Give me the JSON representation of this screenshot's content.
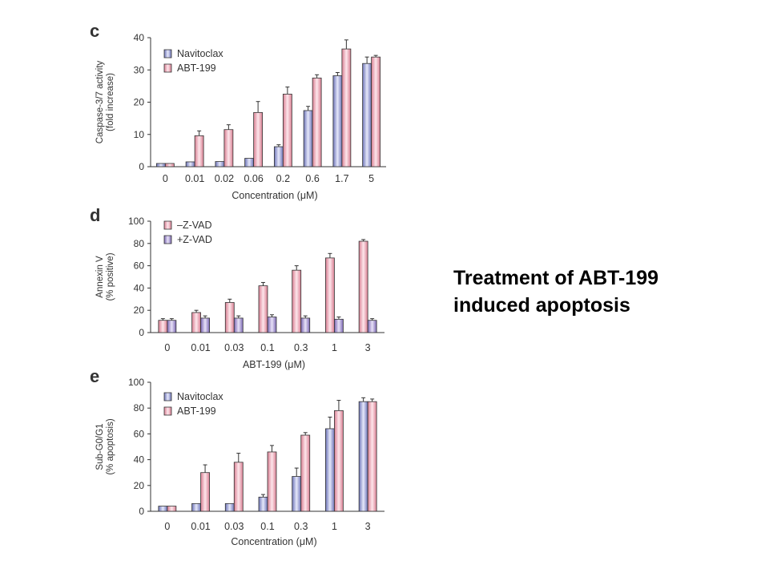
{
  "caption": {
    "line1": "Treatment of ABT-199",
    "line2": "induced apoptosis"
  },
  "colors": {
    "navy_fill": "#aeb3df",
    "pink_fill": "#f2b8c3",
    "stroke": "#333333"
  },
  "chart_data": [
    {
      "panel": "c",
      "type": "bar",
      "ylabel": [
        "Caspase-3/7 activity",
        "(fold increase)"
      ],
      "xlabel": "Concentration (μM)",
      "ylim": [
        0,
        40
      ],
      "yticks": [
        0,
        10,
        20,
        30,
        40
      ],
      "categories": [
        "0",
        "0.01",
        "0.02",
        "0.06",
        "0.2",
        "0.6",
        "1.7",
        "5"
      ],
      "legend": "top-left",
      "series": [
        {
          "name": "Navitoclax",
          "color": "navy",
          "values": [
            1,
            1.5,
            1.6,
            2.6,
            6.2,
            17.4,
            28.2,
            32
          ],
          "errors": [
            0,
            0,
            0,
            0,
            0.6,
            1.3,
            1.0,
            2.0
          ]
        },
        {
          "name": "ABT-199",
          "color": "pink",
          "values": [
            1,
            9.6,
            11.5,
            16.8,
            22.5,
            27.5,
            36.5,
            34
          ],
          "errors": [
            0,
            1.5,
            1.5,
            3.4,
            2.2,
            1.0,
            2.8,
            0.5
          ]
        }
      ]
    },
    {
      "panel": "d",
      "type": "bar",
      "ylabel": [
        "Annexin V",
        "(% positive)"
      ],
      "xlabel": "ABT-199 (μM)",
      "ylim": [
        0,
        100
      ],
      "yticks": [
        0,
        20,
        40,
        60,
        80,
        100
      ],
      "categories": [
        "0",
        "0.01",
        "0.03",
        "0.1",
        "0.3",
        "1",
        "3"
      ],
      "legend": "top-left",
      "series": [
        {
          "name": "–Z-VAD",
          "color": "pink",
          "values": [
            11,
            18,
            27,
            42,
            56,
            67,
            82
          ],
          "errors": [
            1.5,
            2,
            3,
            3,
            4,
            4,
            1.5
          ]
        },
        {
          "name": "+Z-VAD",
          "color": "purple",
          "values": [
            11,
            13,
            13,
            14,
            13,
            12,
            11
          ],
          "errors": [
            1.5,
            2,
            2,
            2,
            2,
            2,
            1.5
          ]
        }
      ]
    },
    {
      "panel": "e",
      "type": "bar",
      "ylabel": [
        "Sub-G0/G1",
        "(% apoptosis)"
      ],
      "xlabel": "Concentration (μM)",
      "ylim": [
        0,
        100
      ],
      "yticks": [
        0,
        20,
        40,
        60,
        80,
        100
      ],
      "categories": [
        "0",
        "0.01",
        "0.03",
        "0.1",
        "0.3",
        "1",
        "3"
      ],
      "legend": "top-left",
      "series": [
        {
          "name": "Navitoclax",
          "color": "navy",
          "values": [
            4,
            6,
            6,
            11,
            27,
            64,
            85
          ],
          "errors": [
            0,
            0,
            0,
            2,
            6.5,
            9,
            3
          ]
        },
        {
          "name": "ABT-199",
          "color": "pink",
          "values": [
            4,
            30,
            38,
            46,
            59,
            78,
            85
          ],
          "errors": [
            0,
            6,
            7,
            5,
            2,
            8,
            2
          ]
        }
      ]
    }
  ]
}
